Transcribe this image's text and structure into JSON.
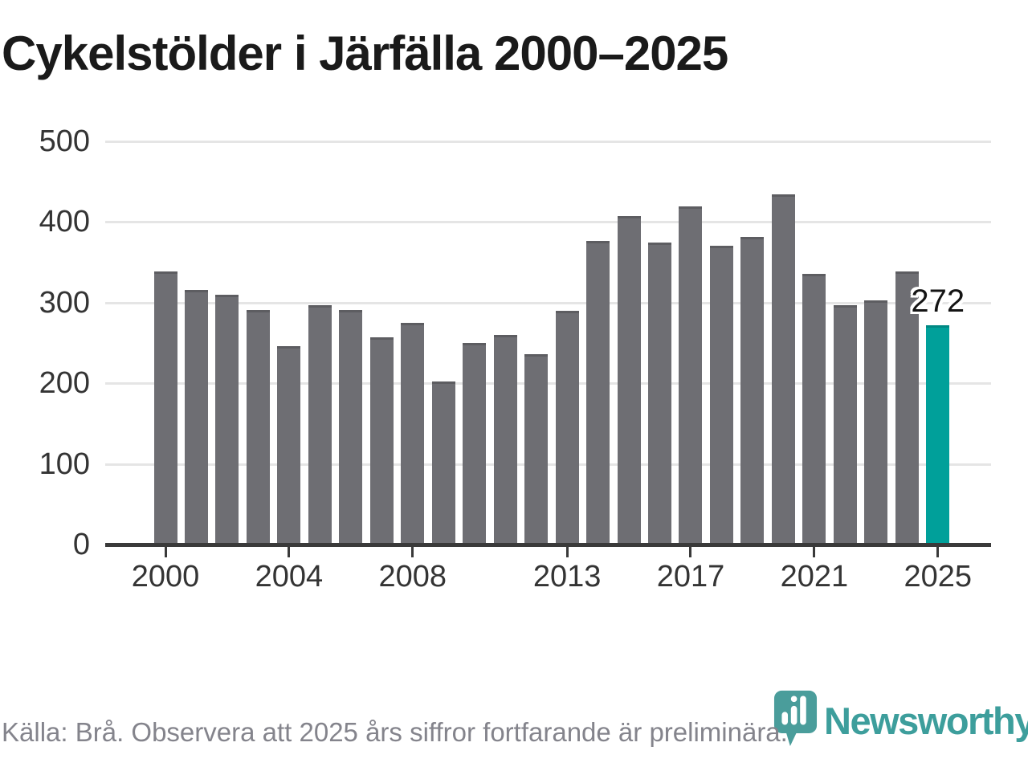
{
  "title": "Cykelstölder i Järfälla 2000–2025",
  "chart_data": {
    "type": "bar",
    "title": "Cykelstölder i Järfälla 2000–2025",
    "categories": [
      "2000",
      "2001",
      "2002",
      "2003",
      "2004",
      "2005",
      "2006",
      "2007",
      "2008",
      "2009",
      "2010",
      "2011",
      "2012",
      "2013",
      "2014",
      "2015",
      "2016",
      "2017",
      "2018",
      "2019",
      "2020",
      "2021",
      "2022",
      "2023",
      "2024",
      "2025"
    ],
    "values": [
      339,
      316,
      310,
      291,
      246,
      297,
      291,
      257,
      275,
      202,
      250,
      260,
      236,
      290,
      376,
      407,
      375,
      419,
      371,
      381,
      434,
      336,
      297,
      303,
      339,
      272
    ],
    "highlight": {
      "category": "2025",
      "value_label": "272",
      "color": "#00a09a"
    },
    "bar_color": "#6e6e73",
    "yticks": [
      0,
      100,
      200,
      300,
      400,
      500
    ],
    "xticks": [
      "2000",
      "2004",
      "2008",
      "2013",
      "2017",
      "2021",
      "2025"
    ],
    "ylim": [
      0,
      500
    ],
    "grid": "horizontal",
    "legend": "none"
  },
  "colors": {
    "bar": "#6e6e73",
    "highlight": "#00a09a",
    "gridline": "#e5e5e5",
    "axis": "#3a3a3a",
    "axis_text": "#343434",
    "muted_text": "#84848c",
    "brand_teal": "#3d9e9c"
  },
  "footer": {
    "source": "Källa: Brå. Observera att 2025 års siffror fortfarande är preliminära.",
    "brand": "Newsworthy"
  }
}
